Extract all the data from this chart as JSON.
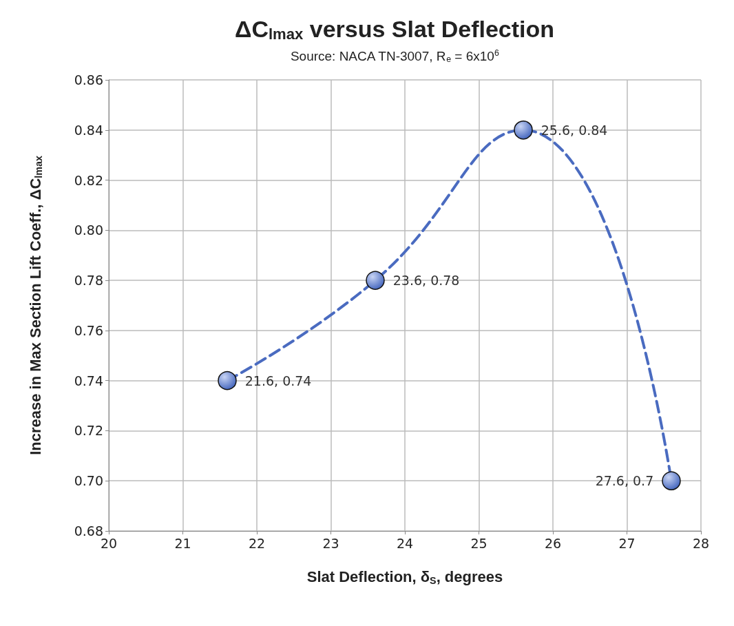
{
  "chart_data": {
    "type": "line",
    "title": "ΔC$_{lmax}$ versus Slat Deflection",
    "subtitle": "Source: NACA TN-3007, R$_{e}$ = 6x10$^{6}$",
    "xlabel": "Slat Deflection, δ$_{S}$, degrees",
    "ylabel": "Increase in Max Section Lift Coeff., ΔC$_{lmax}$",
    "x": [
      21.6,
      23.6,
      25.6,
      27.6
    ],
    "series": [
      {
        "color": "#4a6bc0",
        "values": [
          0.74,
          0.78,
          0.84,
          0.7
        ],
        "value_labels": [
          "21.6, 0.74",
          "23.6, 0.78",
          "25.6, 0.84",
          "27.6, 0.7"
        ]
      }
    ],
    "xlim": [
      20,
      28
    ],
    "xticks": [
      20,
      21,
      22,
      23,
      24,
      25,
      26,
      27,
      28
    ],
    "ylim": [
      0.68,
      0.86
    ],
    "yticks": [
      {
        "value": 0.68,
        "label": "0.68"
      },
      {
        "value": 0.7,
        "label": "0.70"
      },
      {
        "value": 0.72,
        "label": "0.72"
      },
      {
        "value": 0.74,
        "label": "0.74"
      },
      {
        "value": 0.76,
        "label": "0.76"
      },
      {
        "value": 0.78,
        "label": "0.78"
      },
      {
        "value": 0.8,
        "label": "0.80"
      },
      {
        "value": 0.82,
        "label": "0.82"
      },
      {
        "value": 0.84,
        "label": "0.84"
      },
      {
        "value": 0.86,
        "label": "0.86"
      }
    ],
    "grid": true,
    "marker": "circle",
    "line_style": "dashed"
  }
}
